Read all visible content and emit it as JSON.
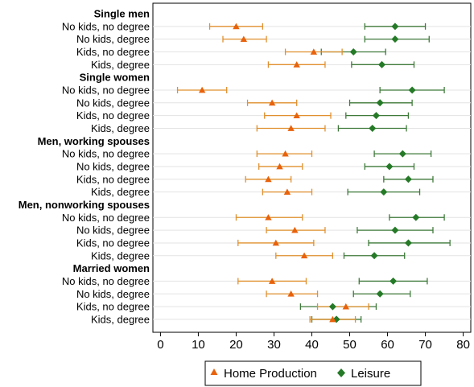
{
  "chart_data": {
    "type": "dot-with-error-bars",
    "xlim": [
      -2,
      82
    ],
    "x_ticks": [
      0,
      10,
      20,
      30,
      40,
      50,
      60,
      70,
      80
    ],
    "colors": {
      "home": "#e8620c",
      "leisure": "#257a27",
      "errorbar_home": "#e0902e",
      "errorbar_leisure": "#3f7a3a"
    },
    "legend": {
      "placement": "bottom",
      "entries": [
        {
          "name": "Home Production",
          "marker": "triangle"
        },
        {
          "name": "Leisure",
          "marker": "diamond"
        }
      ]
    },
    "groups": [
      {
        "title": "Single men",
        "rows": [
          {
            "label": "No kids, no degree",
            "home": [
              20,
              13,
              27
            ],
            "leisure": [
              62,
              54,
              70
            ]
          },
          {
            "label": "No kids, degree",
            "home": [
              22,
              16.5,
              28
            ],
            "leisure": [
              62,
              54,
              71
            ]
          },
          {
            "label": "Kids, no degree",
            "home": [
              40.5,
              33,
              48
            ],
            "leisure": [
              51,
              42.5,
              59.5
            ]
          },
          {
            "label": "Kids, degree",
            "home": [
              36,
              28.5,
              43.5
            ],
            "leisure": [
              58.5,
              50.5,
              67
            ]
          }
        ]
      },
      {
        "title": "Single women",
        "rows": [
          {
            "label": "No kids, no degree",
            "home": [
              11,
              4.5,
              17.5
            ],
            "leisure": [
              66.5,
              58,
              75
            ]
          },
          {
            "label": "No kids, degree",
            "home": [
              29.5,
              23,
              36
            ],
            "leisure": [
              58,
              50,
              66.5
            ]
          },
          {
            "label": "Kids, no degree",
            "home": [
              36,
              27.5,
              45
            ],
            "leisure": [
              57,
              49,
              65.5
            ]
          },
          {
            "label": "Kids, degree",
            "home": [
              34.5,
              25.5,
              43.5
            ],
            "leisure": [
              56,
              47,
              65
            ]
          }
        ]
      },
      {
        "title": "Men, working spouses",
        "rows": [
          {
            "label": "No kids, no degree",
            "home": [
              33,
              25.5,
              40
            ],
            "leisure": [
              64,
              56.5,
              71.5
            ]
          },
          {
            "label": "No kids, degree",
            "home": [
              31.5,
              26,
              37.5
            ],
            "leisure": [
              60.5,
              54,
              67
            ]
          },
          {
            "label": "Kids, no degree",
            "home": [
              28.5,
              22.5,
              34.5
            ],
            "leisure": [
              65.5,
              59,
              72
            ]
          },
          {
            "label": "Kids, degree",
            "home": [
              33.5,
              27,
              40
            ],
            "leisure": [
              59,
              49.5,
              68.5
            ]
          }
        ]
      },
      {
        "title": "Men, nonworking spouses",
        "rows": [
          {
            "label": "No kids, no degree",
            "home": [
              28.5,
              20,
              37.5
            ],
            "leisure": [
              67.5,
              60.5,
              75
            ]
          },
          {
            "label": "No kids, degree",
            "home": [
              35.5,
              28,
              43.5
            ],
            "leisure": [
              62,
              52,
              72
            ]
          },
          {
            "label": "Kids, no degree",
            "home": [
              30.5,
              20.5,
              40.5
            ],
            "leisure": [
              65.5,
              55,
              76.5
            ]
          },
          {
            "label": "Kids, degree",
            "home": [
              38,
              30.5,
              45.5
            ],
            "leisure": [
              56.5,
              48.5,
              64.5
            ]
          }
        ]
      },
      {
        "title": "Married women",
        "rows": [
          {
            "label": "No kids, no degree",
            "home": [
              29.5,
              20.5,
              38.5
            ],
            "leisure": [
              61.5,
              52.5,
              70.5
            ]
          },
          {
            "label": "No kids, degree",
            "home": [
              34.5,
              28,
              41.5
            ],
            "leisure": [
              58,
              51,
              66
            ]
          },
          {
            "label": "Kids, no degree",
            "home": [
              49,
              41.5,
              55
            ],
            "leisure": [
              45.5,
              37,
              57
            ]
          },
          {
            "label": "Kids, degree",
            "home": [
              45.5,
              39.5,
              51.5
            ],
            "leisure": [
              46.5,
              40,
              53
            ]
          }
        ]
      }
    ]
  }
}
